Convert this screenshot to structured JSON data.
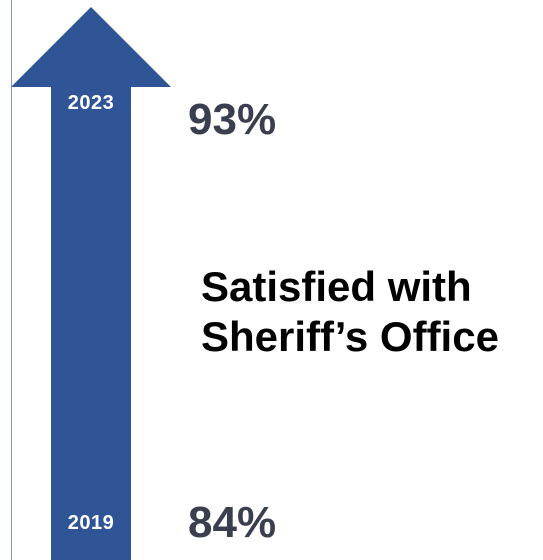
{
  "arrow": {
    "color": "#2f5597",
    "icon": "up-arrow-icon"
  },
  "start": {
    "year": "2019",
    "value": "84%"
  },
  "end": {
    "year": "2023",
    "value": "93%"
  },
  "caption": {
    "line1": "Satisfied with",
    "line2": "Sheriff’s Office"
  }
}
